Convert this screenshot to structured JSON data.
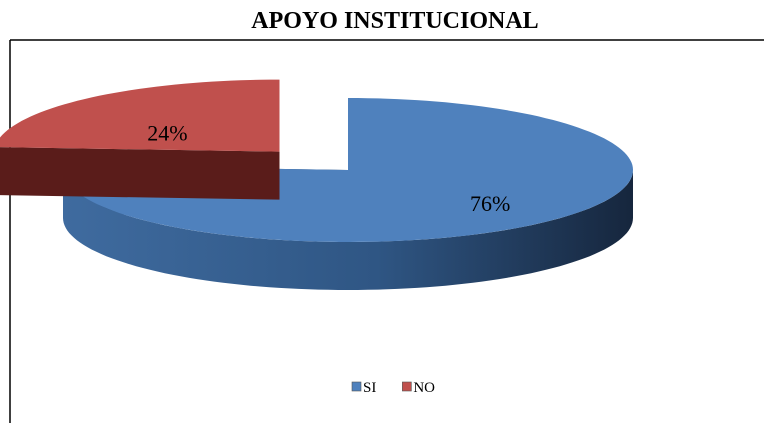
{
  "chart_data": {
    "type": "pie",
    "title": "APOYO INSTITUCIONAL",
    "categories": [
      "SI",
      "NO"
    ],
    "values": [
      76,
      24
    ],
    "value_labels": [
      "76%",
      "24%"
    ],
    "colors": [
      "#4f81bd",
      "#c0504d"
    ],
    "legend": "bottom"
  }
}
